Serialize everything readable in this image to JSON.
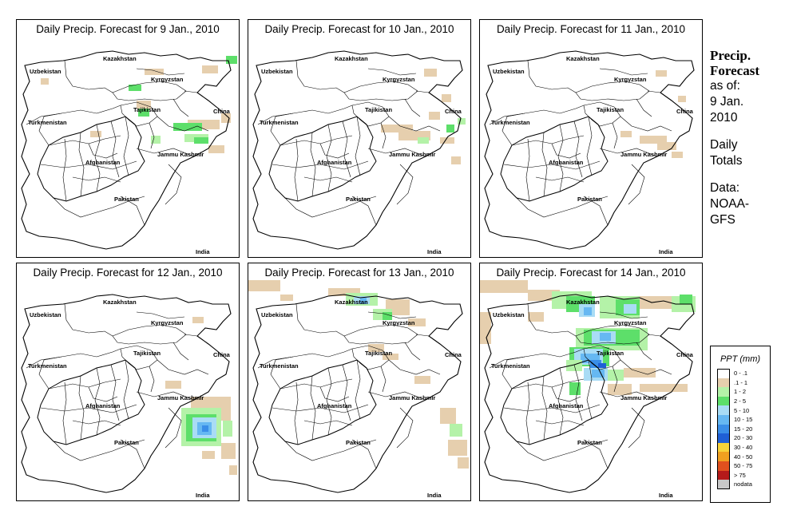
{
  "panels": [
    {
      "title": "Daily Precip. Forecast for  9 Jan., 2010"
    },
    {
      "title": "Daily Precip. Forecast for  10 Jan., 2010"
    },
    {
      "title": "Daily Precip. Forecast for  11 Jan., 2010"
    },
    {
      "title": "Daily Precip. Forecast for  12 Jan., 2010"
    },
    {
      "title": "Daily Precip. Forecast for  13 Jan., 2010"
    },
    {
      "title": "Daily Precip. Forecast for  14 Jan., 2010"
    }
  ],
  "map_labels": {
    "kazakhstan": "Kazakhstan",
    "uzbekistan": "Uzbekistan",
    "kyrgyzstan": "Kyrgyzstan",
    "tajikistan": "Tajikistan",
    "china": "China",
    "turkmenistan": "Turkmenistan",
    "afghanistan": "Afghanistan",
    "jammu_kashmir": "Jammu Kashmir",
    "pakistan": "Pakistan",
    "india": "India"
  },
  "side": {
    "title_line1": "Precip.",
    "title_line2": "Forecast",
    "asof_line1": "as of:",
    "asof_line2": "9 Jan.",
    "asof_line3": "2010",
    "totals_line1": "Daily",
    "totals_line2": "Totals",
    "data_line1": "Data:",
    "data_line2": "NOAA-",
    "data_line3": "GFS"
  },
  "legend": {
    "title": "PPT (mm)",
    "items": [
      {
        "label": "0 - .1",
        "color": "#ffffff"
      },
      {
        "label": ".1 - 1",
        "color": "#e6cfae"
      },
      {
        "label": "1 - 2",
        "color": "#b4f2a8"
      },
      {
        "label": "2 - 5",
        "color": "#5ddf6a"
      },
      {
        "label": "5 - 10",
        "color": "#a9dcf5"
      },
      {
        "label": "10 - 15",
        "color": "#66b8f2"
      },
      {
        "label": "15 - 20",
        "color": "#3a8ee8"
      },
      {
        "label": "20 - 30",
        "color": "#1f5fd6"
      },
      {
        "label": "30 - 40",
        "color": "#f7d33a"
      },
      {
        "label": "40 - 50",
        "color": "#f0a020"
      },
      {
        "label": "50 - 75",
        "color": "#e0501e"
      },
      {
        "label": "> 75",
        "color": "#b51a1a"
      },
      {
        "label": "nodata",
        "color": "#c8c8c8"
      }
    ]
  }
}
